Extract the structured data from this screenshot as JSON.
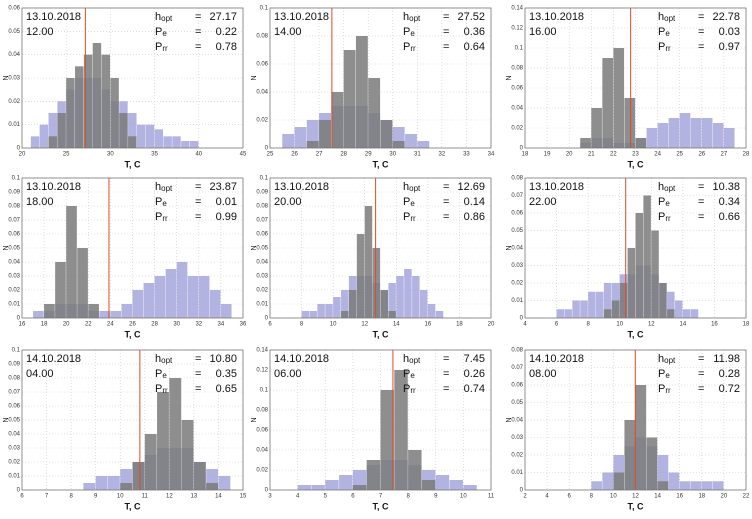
{
  "chart_data": [
    {
      "type": "histogram",
      "date": "13.10.2018",
      "time": "12.00",
      "xlabel": "T, C",
      "ylabel": "N",
      "stat_sign": "=",
      "stats": [
        {
          "label": "h",
          "sub": "opt",
          "value": 27.17
        },
        {
          "label": "P",
          "sub": "e",
          "value": 0.22
        },
        {
          "label": "P",
          "sub": "rr",
          "value": 0.78
        }
      ],
      "marker_color": "#e04a2a",
      "xlim": [
        20,
        45
      ],
      "xticks": [
        20,
        25,
        30,
        35,
        40,
        45
      ],
      "ylim": [
        0,
        0.06
      ],
      "yticks": [
        0,
        0.01,
        0.02,
        0.03,
        0.04,
        0.05,
        0.06
      ],
      "grid": true,
      "bins": [
        21,
        22,
        23,
        24,
        25,
        26,
        27,
        28,
        29,
        30,
        31,
        32,
        33,
        34,
        35,
        36,
        37,
        38,
        39,
        40
      ],
      "series": [
        {
          "color": "#9a9ad8",
          "values": [
            0.005,
            0.01,
            0.015,
            0.02,
            0.025,
            0.03,
            0.03,
            0.03,
            0.025,
            0.02,
            0.02,
            0.015,
            0.01,
            0.01,
            0.008,
            0.005,
            0.005,
            0.003,
            0.003
          ]
        },
        {
          "color": "#7a7a7a",
          "values": [
            0,
            0,
            0.005,
            0.015,
            0.03,
            0.035,
            0.04,
            0.045,
            0.04,
            0.03,
            0.015,
            0.005,
            0,
            0,
            0,
            0,
            0,
            0,
            0
          ]
        }
      ]
    },
    {
      "type": "histogram",
      "date": "13.10.2018",
      "time": "14.00",
      "xlabel": "T, C",
      "ylabel": "N",
      "stat_sign": "=",
      "stats": [
        {
          "label": "h",
          "sub": "opt",
          "value": 27.52
        },
        {
          "label": "P",
          "sub": "e",
          "value": 0.36
        },
        {
          "label": "P",
          "sub": "rr",
          "value": 0.64
        }
      ],
      "marker_color": "#e04a2a",
      "xlim": [
        25,
        34
      ],
      "xticks": [
        25,
        26,
        27,
        28,
        29,
        30,
        31,
        32,
        33,
        34
      ],
      "ylim": [
        0,
        0.1
      ],
      "yticks": [
        0,
        0.02,
        0.04,
        0.06,
        0.08,
        0.1
      ],
      "grid": true,
      "bins": [
        25.5,
        26,
        26.5,
        27,
        27.5,
        28,
        28.5,
        29,
        29.5,
        30,
        30.5,
        31,
        31.5
      ],
      "series": [
        {
          "color": "#9a9ad8",
          "values": [
            0.01,
            0.015,
            0.02,
            0.025,
            0.03,
            0.03,
            0.03,
            0.025,
            0.02,
            0.015,
            0.01,
            0.005
          ]
        },
        {
          "color": "#7a7a7a",
          "values": [
            0,
            0,
            0.005,
            0.02,
            0.04,
            0.07,
            0.08,
            0.05,
            0.02,
            0.005,
            0,
            0
          ]
        }
      ]
    },
    {
      "type": "histogram",
      "date": "13.10.2018",
      "time": "16.00",
      "xlabel": "T, C",
      "ylabel": "N",
      "stat_sign": "=",
      "stats": [
        {
          "label": "h",
          "sub": "opt",
          "value": 22.78
        },
        {
          "label": "P",
          "sub": "e",
          "value": 0.03
        },
        {
          "label": "P",
          "sub": "rr",
          "value": 0.97
        }
      ],
      "marker_color": "#e04a2a",
      "xlim": [
        18,
        28
      ],
      "xticks": [
        18,
        19,
        20,
        21,
        22,
        23,
        24,
        25,
        26,
        27,
        28
      ],
      "ylim": [
        0,
        0.14
      ],
      "yticks": [
        0,
        0.02,
        0.04,
        0.06,
        0.08,
        0.1,
        0.12,
        0.14
      ],
      "grid": true,
      "bins": [
        20.5,
        21,
        21.5,
        22,
        22.5,
        23,
        23.5,
        24,
        24.5,
        25,
        25.5,
        26,
        26.5,
        27,
        27.5
      ],
      "series": [
        {
          "color": "#9a9ad8",
          "values": [
            0.005,
            0.01,
            0.01,
            0.005,
            0.005,
            0.01,
            0.02,
            0.025,
            0.03,
            0.035,
            0.03,
            0.03,
            0.025,
            0.02
          ]
        },
        {
          "color": "#7a7a7a",
          "values": [
            0.01,
            0.04,
            0.09,
            0.1,
            0.05,
            0.01,
            0,
            0,
            0,
            0,
            0,
            0,
            0,
            0
          ]
        }
      ]
    },
    {
      "type": "histogram",
      "date": "13.10.2018",
      "time": "18.00",
      "xlabel": "T, C",
      "ylabel": "N",
      "stat_sign": "=",
      "stats": [
        {
          "label": "h",
          "sub": "opt",
          "value": 23.87
        },
        {
          "label": "P",
          "sub": "e",
          "value": 0.01
        },
        {
          "label": "P",
          "sub": "rr",
          "value": 0.99
        }
      ],
      "marker_color": "#e04a2a",
      "xlim": [
        16,
        36
      ],
      "xticks": [
        16,
        18,
        20,
        22,
        24,
        26,
        28,
        30,
        32,
        34,
        36
      ],
      "ylim": [
        0,
        0.1
      ],
      "yticks": [
        0,
        0.01,
        0.02,
        0.03,
        0.04,
        0.05,
        0.06,
        0.07,
        0.08,
        0.09,
        0.1
      ],
      "grid": true,
      "bins": [
        17,
        18,
        19,
        20,
        21,
        22,
        23,
        24,
        25,
        26,
        27,
        28,
        29,
        30,
        31,
        32,
        33,
        34,
        35
      ],
      "series": [
        {
          "color": "#9a9ad8",
          "values": [
            0.005,
            0.005,
            0.01,
            0.01,
            0.01,
            0.005,
            0.005,
            0.005,
            0.01,
            0.02,
            0.025,
            0.03,
            0.035,
            0.04,
            0.03,
            0.03,
            0.02,
            0.01
          ]
        },
        {
          "color": "#7a7a7a",
          "values": [
            0,
            0.01,
            0.04,
            0.08,
            0.05,
            0.01,
            0,
            0,
            0,
            0,
            0,
            0,
            0,
            0,
            0,
            0,
            0,
            0
          ]
        }
      ]
    },
    {
      "type": "histogram",
      "date": "13.10.2018",
      "time": "20.00",
      "xlabel": "T, C",
      "ylabel": "N",
      "stat_sign": "=",
      "stats": [
        {
          "label": "h",
          "sub": "opt",
          "value": 12.69
        },
        {
          "label": "P",
          "sub": "e",
          "value": 0.14
        },
        {
          "label": "P",
          "sub": "rr",
          "value": 0.86
        }
      ],
      "marker_color": "#e04a2a",
      "xlim": [
        6,
        20
      ],
      "xticks": [
        6,
        8,
        10,
        12,
        14,
        16,
        18,
        20
      ],
      "ylim": [
        0,
        0.1
      ],
      "yticks": [
        0,
        0.01,
        0.02,
        0.03,
        0.04,
        0.05,
        0.06,
        0.07,
        0.08,
        0.09,
        0.1
      ],
      "grid": true,
      "bins": [
        8,
        8.5,
        9,
        9.5,
        10,
        10.5,
        11,
        11.5,
        12,
        12.5,
        13,
        13.5,
        14,
        14.5,
        15,
        15.5,
        16,
        16.5,
        17
      ],
      "series": [
        {
          "color": "#9a9ad8",
          "values": [
            0.005,
            0.005,
            0.01,
            0.01,
            0.015,
            0.02,
            0.03,
            0.03,
            0.03,
            0.025,
            0.02,
            0.025,
            0.03,
            0.035,
            0.03,
            0.02,
            0.01,
            0.005
          ]
        },
        {
          "color": "#7a7a7a",
          "values": [
            0,
            0,
            0,
            0,
            0,
            0.005,
            0.02,
            0.06,
            0.08,
            0.05,
            0.02,
            0.005,
            0,
            0,
            0,
            0,
            0,
            0
          ]
        }
      ]
    },
    {
      "type": "histogram",
      "date": "13.10.2018",
      "time": "22.00",
      "xlabel": "T, C",
      "ylabel": "N",
      "stat_sign": "=",
      "stats": [
        {
          "label": "h",
          "sub": "opt",
          "value": 10.38
        },
        {
          "label": "P",
          "sub": "e",
          "value": 0.34
        },
        {
          "label": "P",
          "sub": "rr",
          "value": 0.66
        }
      ],
      "marker_color": "#e04a2a",
      "xlim": [
        4,
        18
      ],
      "xticks": [
        4,
        6,
        8,
        10,
        12,
        14,
        16,
        18
      ],
      "ylim": [
        0,
        0.08
      ],
      "yticks": [
        0,
        0.01,
        0.02,
        0.03,
        0.04,
        0.05,
        0.06,
        0.07,
        0.08
      ],
      "grid": true,
      "bins": [
        6,
        6.5,
        7,
        7.5,
        8,
        8.5,
        9,
        9.5,
        10,
        10.5,
        11,
        11.5,
        12,
        12.5,
        13,
        13.5,
        14,
        14.5,
        15
      ],
      "series": [
        {
          "color": "#9a9ad8",
          "values": [
            0.005,
            0.005,
            0.01,
            0.01,
            0.015,
            0.015,
            0.02,
            0.02,
            0.025,
            0.025,
            0.03,
            0.03,
            0.025,
            0.02,
            0.015,
            0.01,
            0.005,
            0.005
          ]
        },
        {
          "color": "#7a7a7a",
          "values": [
            0,
            0,
            0,
            0,
            0,
            0,
            0.005,
            0.01,
            0.02,
            0.04,
            0.06,
            0.07,
            0.05,
            0.02,
            0.005,
            0,
            0,
            0
          ]
        }
      ]
    },
    {
      "type": "histogram",
      "date": "14.10.2018",
      "time": "04.00",
      "xlabel": "T, C",
      "ylabel": "N",
      "stat_sign": "=",
      "stats": [
        {
          "label": "h",
          "sub": "opt",
          "value": {
            "value": 10.8,
            "label": "10.80"
          }
        },
        {
          "label": "P",
          "sub": "e",
          "value": 0.35
        },
        {
          "label": "P",
          "sub": "rr",
          "value": 0.65
        }
      ],
      "marker_color": "#e04a2a",
      "xlim": [
        6,
        15
      ],
      "xticks": [
        6,
        7,
        8,
        9,
        10,
        11,
        12,
        13,
        14,
        15
      ],
      "ylim": [
        0,
        0.1
      ],
      "yticks": [
        0,
        0.01,
        0.02,
        0.03,
        0.04,
        0.05,
        0.06,
        0.07,
        0.08,
        0.09,
        0.1
      ],
      "grid": true,
      "bins": [
        8.5,
        9,
        9.5,
        10,
        10.5,
        11,
        11.5,
        12,
        12.5,
        13,
        13.5,
        14,
        14.5
      ],
      "series": [
        {
          "color": "#9a9ad8",
          "values": [
            0.005,
            0.01,
            0.01,
            0.015,
            0.02,
            0.025,
            0.03,
            0.03,
            0.03,
            0.02,
            0.015,
            0.01
          ]
        },
        {
          "color": "#7a7a7a",
          "values": [
            0,
            0,
            0,
            0.005,
            0.02,
            0.04,
            0.07,
            0.08,
            0.05,
            0.02,
            0.005,
            0
          ]
        }
      ]
    },
    {
      "type": "histogram",
      "date": "14.10.2018",
      "time": "06.00",
      "xlabel": "T, C",
      "ylabel": "N",
      "stat_sign": "=",
      "stats": [
        {
          "label": "h",
          "sub": "opt",
          "value": 7.45
        },
        {
          "label": "P",
          "sub": "e",
          "value": 0.26
        },
        {
          "label": "P",
          "sub": "rr",
          "value": 0.74
        }
      ],
      "marker_color": "#e04a2a",
      "xlim": [
        3,
        11
      ],
      "xticks": [
        3,
        4,
        5,
        6,
        7,
        8,
        9,
        10,
        11
      ],
      "ylim": [
        0,
        0.14
      ],
      "yticks": [
        0,
        0.02,
        0.04,
        0.06,
        0.08,
        0.1,
        0.12,
        0.14
      ],
      "grid": true,
      "bins": [
        4,
        4.5,
        5,
        5.5,
        6,
        6.5,
        7,
        7.5,
        8,
        8.5,
        9,
        9.5,
        10,
        10.5
      ],
      "series": [
        {
          "color": "#9a9ad8",
          "values": [
            0.005,
            0.005,
            0.01,
            0.015,
            0.02,
            0.025,
            0.03,
            0.03,
            0.025,
            0.02,
            0.015,
            0.01,
            0.005
          ]
        },
        {
          "color": "#7a7a7a",
          "values": [
            0,
            0,
            0,
            0,
            0.005,
            0.03,
            0.1,
            0.12,
            0.04,
            0.01,
            0,
            0,
            0
          ]
        }
      ]
    },
    {
      "type": "histogram",
      "date": "14.10.2018",
      "time": "08.00",
      "xlabel": "T, C",
      "ylabel": "N",
      "stat_sign": "=",
      "stats": [
        {
          "label": "h",
          "sub": "opt",
          "value": 11.98
        },
        {
          "label": "P",
          "sub": "e",
          "value": 0.28
        },
        {
          "label": "P",
          "sub": "rr",
          "value": 0.72
        }
      ],
      "marker_color": "#e04a2a",
      "xlim": [
        2,
        22
      ],
      "xticks": [
        2,
        4,
        6,
        8,
        10,
        12,
        14,
        16,
        18,
        20,
        22
      ],
      "ylim": [
        0,
        0.08
      ],
      "yticks": [
        0,
        0.01,
        0.02,
        0.03,
        0.04,
        0.05,
        0.06,
        0.07,
        0.08
      ],
      "grid": true,
      "bins": [
        8,
        9,
        10,
        11,
        12,
        13,
        14,
        15,
        16,
        17,
        18,
        19,
        20
      ],
      "series": [
        {
          "color": "#9a9ad8",
          "values": [
            0.005,
            0.01,
            0.02,
            0.025,
            0.03,
            0.025,
            0.02,
            0.01,
            0.005,
            0.005,
            0.005,
            0.005
          ]
        },
        {
          "color": "#7a7a7a",
          "values": [
            0,
            0,
            0.01,
            0.04,
            0.06,
            0.03,
            0.005,
            0,
            0,
            0,
            0,
            0
          ]
        }
      ]
    }
  ]
}
